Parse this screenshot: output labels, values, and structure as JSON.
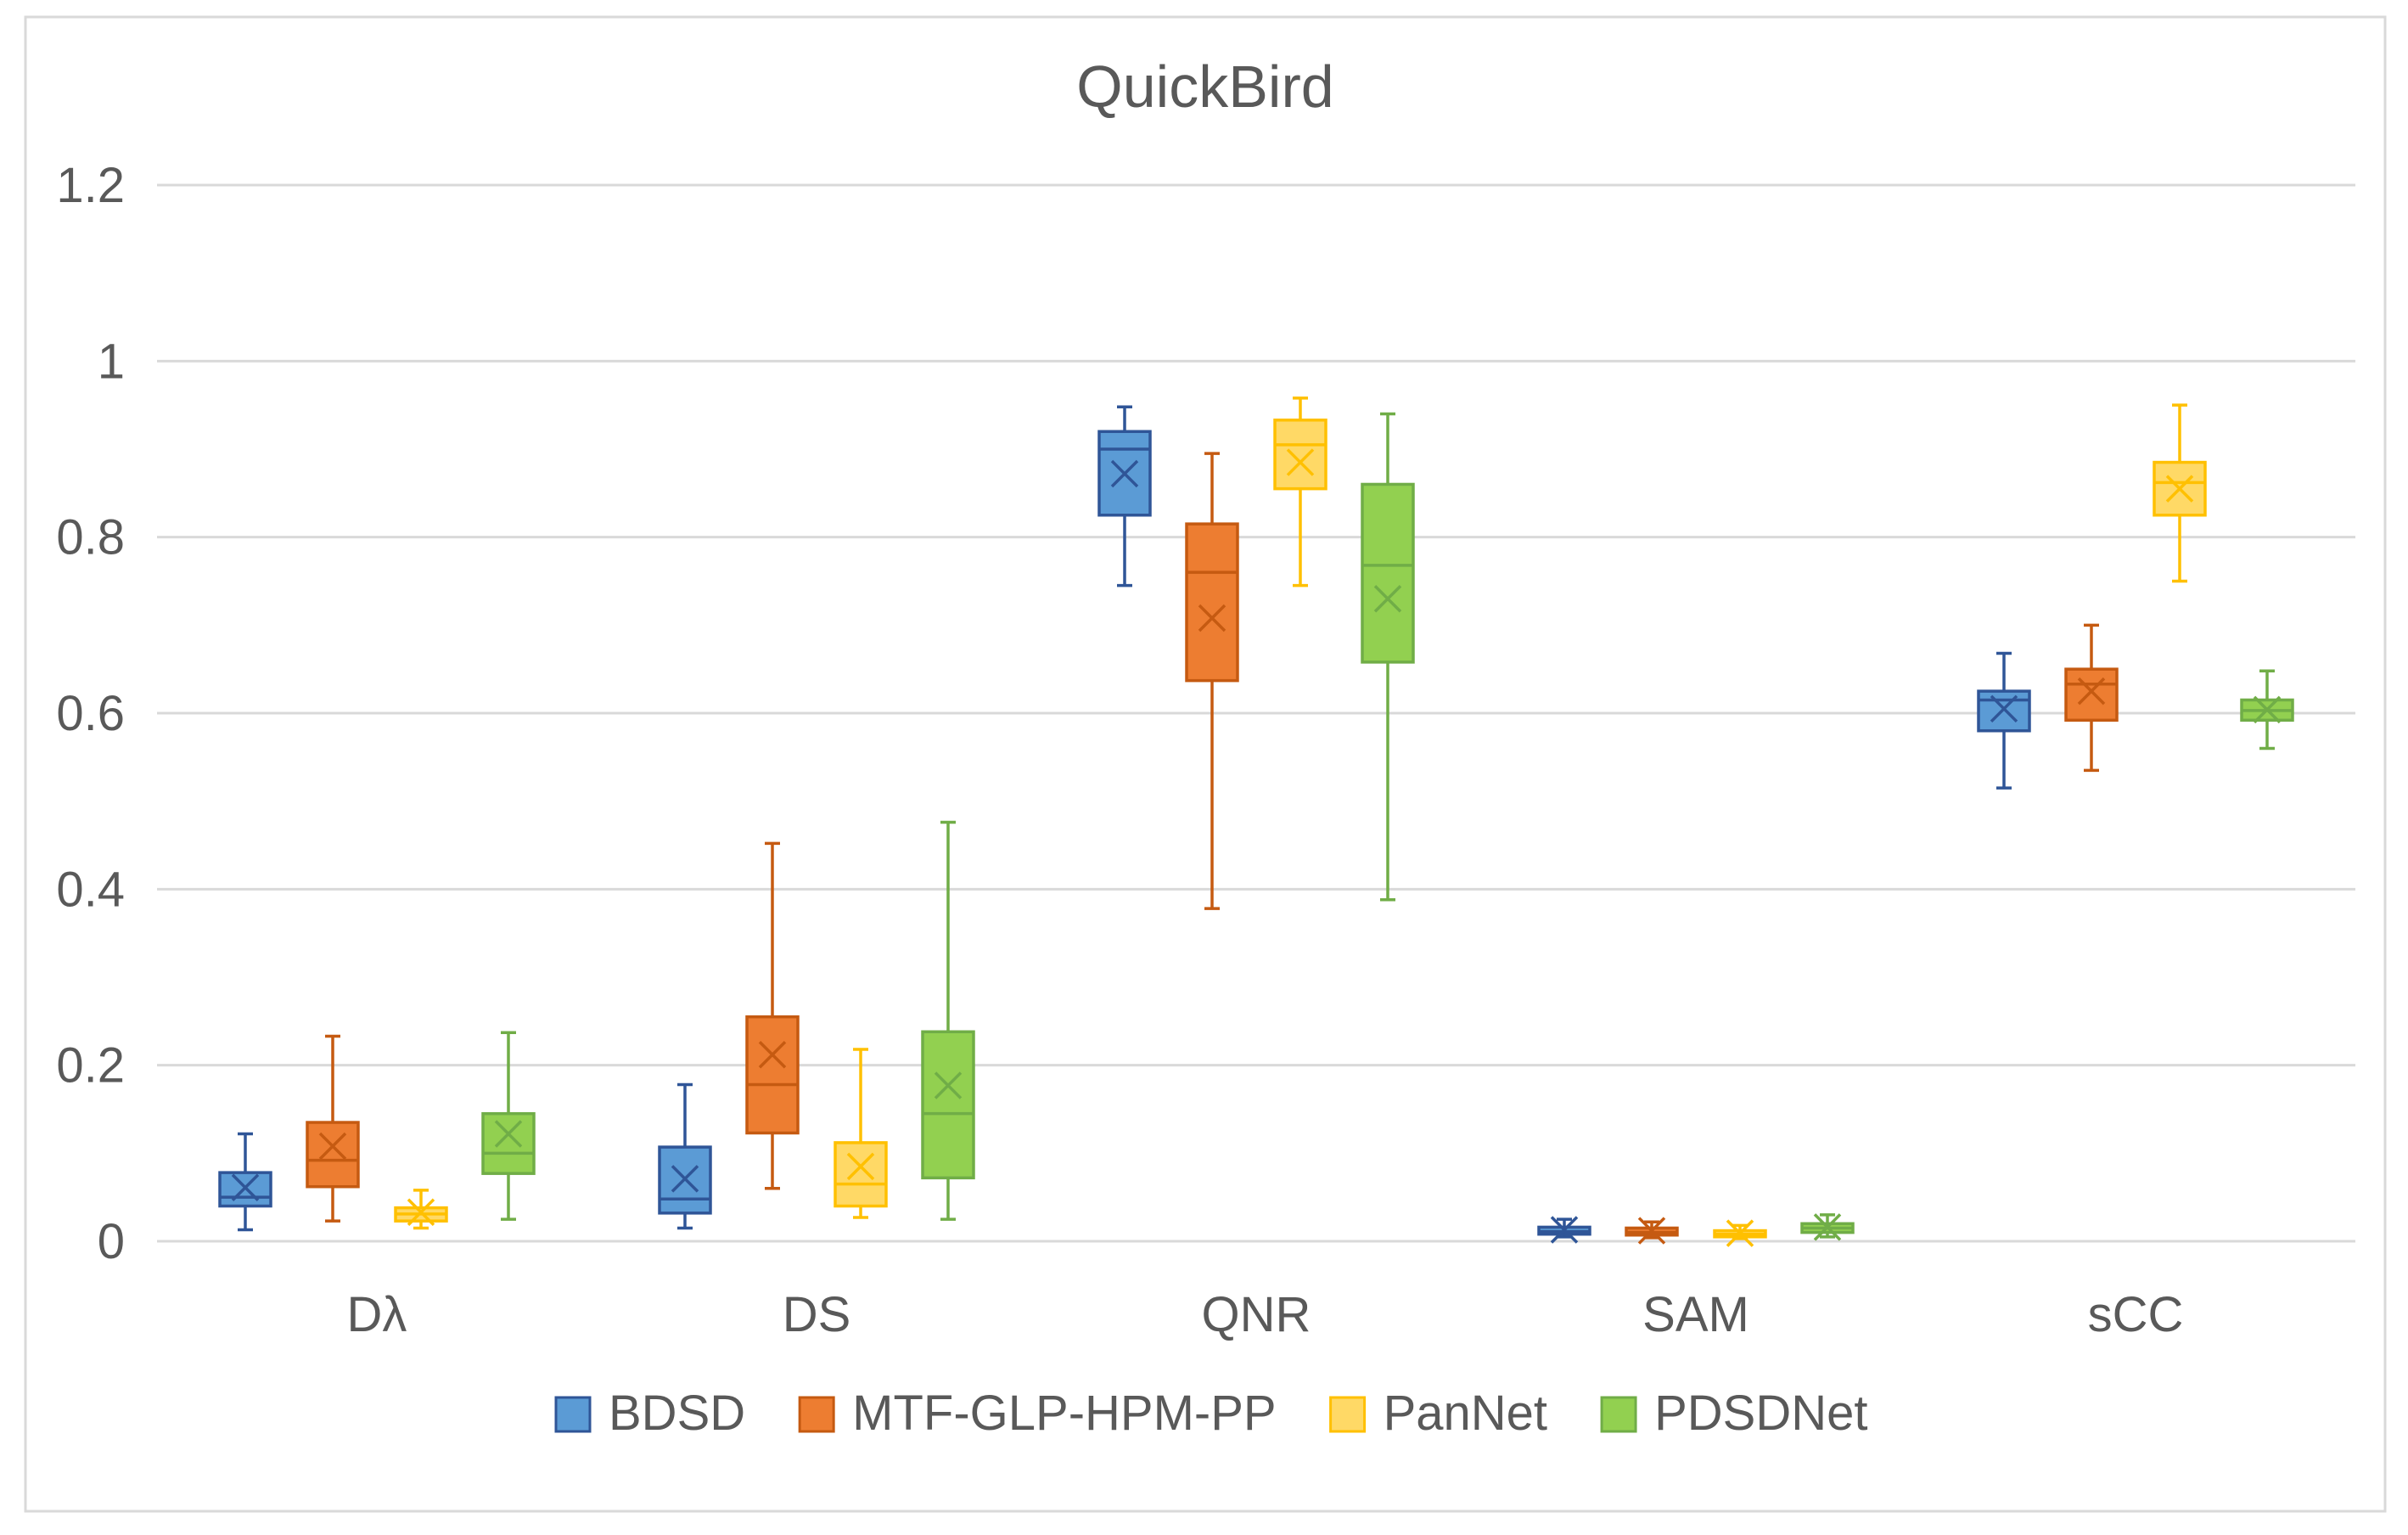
{
  "chart_data": {
    "type": "boxplot",
    "title": "QuickBird",
    "xlabel": "",
    "ylabel": "",
    "ylim": [
      0,
      1.2
    ],
    "yticks": [
      "0",
      "0.2",
      "0.4",
      "0.6",
      "0.8",
      "1",
      "1.2"
    ],
    "ytick_values": [
      0,
      0.2,
      0.4,
      0.6,
      0.8,
      1.0,
      1.2
    ],
    "grid": true,
    "legend_position": "bottom",
    "categories": [
      "Dλ",
      "DS",
      "QNR",
      "SAM",
      "sCC"
    ],
    "series": [
      {
        "name": "BDSD",
        "fill": "#5B9BD5",
        "stroke": "#2F5597",
        "boxes": [
          {
            "min": 0.013,
            "q1": 0.04,
            "median": 0.05,
            "q3": 0.078,
            "max": 0.122,
            "mean": 0.061
          },
          {
            "min": 0.015,
            "q1": 0.032,
            "median": 0.048,
            "q3": 0.107,
            "max": 0.178,
            "mean": 0.071
          },
          {
            "min": 0.745,
            "q1": 0.825,
            "median": 0.9,
            "q3": 0.92,
            "max": 0.948,
            "mean": 0.872
          },
          {
            "min": 0.005,
            "q1": 0.008,
            "median": 0.011,
            "q3": 0.016,
            "max": 0.025,
            "mean": 0.013
          },
          {
            "min": 0.515,
            "q1": 0.58,
            "median": 0.615,
            "q3": 0.625,
            "max": 0.668,
            "mean": 0.605
          }
        ]
      },
      {
        "name": "MTF-GLP-HPM-PP",
        "fill": "#ED7D31",
        "stroke": "#C55A11",
        "boxes": [
          {
            "min": 0.023,
            "q1": 0.062,
            "median": 0.092,
            "q3": 0.135,
            "max": 0.233,
            "mean": 0.108
          },
          {
            "min": 0.06,
            "q1": 0.123,
            "median": 0.178,
            "q3": 0.255,
            "max": 0.452,
            "mean": 0.212
          },
          {
            "min": 0.378,
            "q1": 0.637,
            "median": 0.76,
            "q3": 0.815,
            "max": 0.895,
            "mean": 0.708
          },
          {
            "min": 0.004,
            "q1": 0.007,
            "median": 0.01,
            "q3": 0.015,
            "max": 0.022,
            "mean": 0.012
          },
          {
            "min": 0.535,
            "q1": 0.592,
            "median": 0.633,
            "q3": 0.65,
            "max": 0.7,
            "mean": 0.625
          }
        ]
      },
      {
        "name": "PanNet",
        "fill": "#FFD966",
        "stroke": "#FFC000",
        "boxes": [
          {
            "min": 0.015,
            "q1": 0.023,
            "median": 0.031,
            "q3": 0.038,
            "max": 0.058,
            "mean": 0.033
          },
          {
            "min": 0.027,
            "q1": 0.04,
            "median": 0.065,
            "q3": 0.112,
            "max": 0.218,
            "mean": 0.085
          },
          {
            "min": 0.745,
            "q1": 0.855,
            "median": 0.905,
            "q3": 0.933,
            "max": 0.958,
            "mean": 0.885
          },
          {
            "min": 0.003,
            "q1": 0.005,
            "median": 0.008,
            "q3": 0.012,
            "max": 0.018,
            "mean": 0.009
          },
          {
            "min": 0.75,
            "q1": 0.825,
            "median": 0.862,
            "q3": 0.885,
            "max": 0.95,
            "mean": 0.855
          }
        ]
      },
      {
        "name": "PDSDNet",
        "fill": "#92D050",
        "stroke": "#70AD47",
        "boxes": [
          {
            "min": 0.025,
            "q1": 0.077,
            "median": 0.1,
            "q3": 0.145,
            "max": 0.237,
            "mean": 0.122
          },
          {
            "min": 0.025,
            "q1": 0.072,
            "median": 0.145,
            "q3": 0.238,
            "max": 0.476,
            "mean": 0.177
          },
          {
            "min": 0.388,
            "q1": 0.658,
            "median": 0.768,
            "q3": 0.86,
            "max": 0.94,
            "mean": 0.73
          },
          {
            "min": 0.005,
            "q1": 0.01,
            "median": 0.015,
            "q3": 0.02,
            "max": 0.03,
            "mean": 0.016
          },
          {
            "min": 0.56,
            "q1": 0.592,
            "median": 0.603,
            "q3": 0.615,
            "max": 0.648,
            "mean": 0.604
          }
        ]
      }
    ]
  }
}
